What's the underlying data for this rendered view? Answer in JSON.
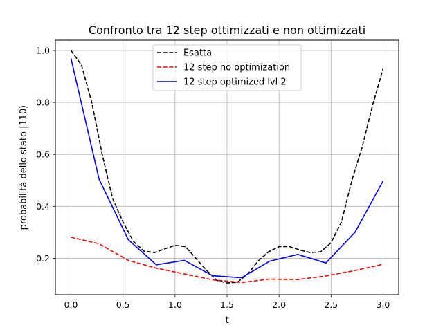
{
  "chart_data": {
    "type": "line",
    "title": "Confronto tra 12 step ottimizzati e non ottimizzati",
    "xlabel": "t",
    "ylabel": "probabilità dello stato |110⟩",
    "xlim": [
      -0.15,
      3.15
    ],
    "ylim": [
      0.06,
      1.04
    ],
    "xticks": [
      0.0,
      0.5,
      1.0,
      1.5,
      2.0,
      2.5,
      3.0
    ],
    "xtick_labels": [
      "0.0",
      "0.5",
      "1.0",
      "1.5",
      "2.0",
      "2.5",
      "3.0"
    ],
    "yticks": [
      0.2,
      0.4,
      0.6,
      0.8,
      1.0
    ],
    "ytick_labels": [
      "0.2",
      "0.4",
      "0.6",
      "0.8",
      "1.0"
    ],
    "grid": true,
    "legend_position": "top-center",
    "series": [
      {
        "name": "Esatta",
        "color": "#000000",
        "style": "dashed",
        "x": [
          0.0,
          0.1,
          0.2,
          0.3,
          0.4,
          0.5,
          0.6,
          0.7,
          0.8,
          0.9,
          1.0,
          1.1,
          1.2,
          1.3,
          1.4,
          1.5,
          1.6,
          1.7,
          1.8,
          1.9,
          2.0,
          2.1,
          2.2,
          2.3,
          2.4,
          2.5,
          2.6,
          2.7,
          2.8,
          2.9,
          3.0
        ],
        "y": [
          1.0,
          0.945,
          0.8,
          0.6,
          0.43,
          0.34,
          0.265,
          0.228,
          0.222,
          0.236,
          0.25,
          0.245,
          0.2,
          0.155,
          0.115,
          0.105,
          0.108,
          0.14,
          0.19,
          0.225,
          0.245,
          0.245,
          0.232,
          0.222,
          0.225,
          0.26,
          0.34,
          0.5,
          0.63,
          0.79,
          0.93
        ]
      },
      {
        "name": "12 step no optimization",
        "color": "#ff0000",
        "style": "dashed",
        "x": [
          0.0,
          0.27,
          0.55,
          0.82,
          1.09,
          1.36,
          1.64,
          1.91,
          2.18,
          2.45,
          2.73,
          3.0
        ],
        "y": [
          0.281,
          0.256,
          0.192,
          0.162,
          0.14,
          0.117,
          0.107,
          0.12,
          0.118,
          0.132,
          0.153,
          0.177
        ]
      },
      {
        "name": "12 step optimized lvl 2",
        "color": "#0000ff",
        "style": "solid",
        "x": [
          0.0,
          0.27,
          0.55,
          0.82,
          1.09,
          1.36,
          1.64,
          1.91,
          2.18,
          2.45,
          2.73,
          3.0
        ],
        "y": [
          0.97,
          0.505,
          0.272,
          0.175,
          0.192,
          0.133,
          0.125,
          0.189,
          0.215,
          0.182,
          0.3,
          0.498
        ]
      }
    ]
  }
}
